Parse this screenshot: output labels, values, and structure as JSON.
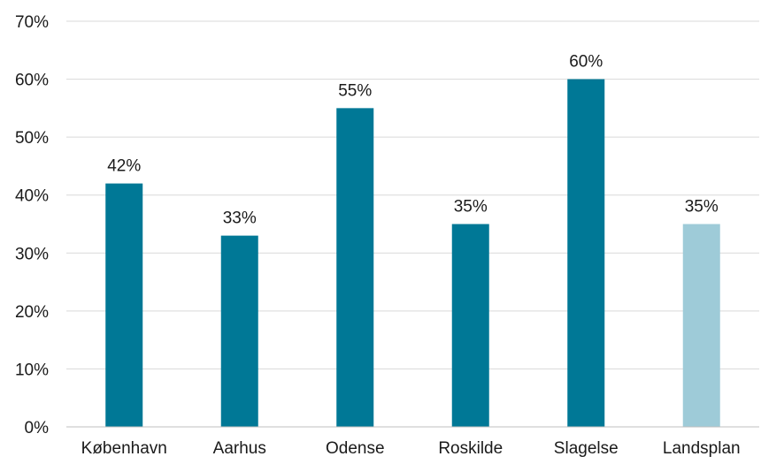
{
  "chart_data": {
    "type": "bar",
    "categories": [
      "København",
      "Aarhus",
      "Odense",
      "Roskilde",
      "Slagelse",
      "Landsplan"
    ],
    "values": [
      42,
      33,
      55,
      35,
      60,
      35
    ],
    "data_labels": [
      "42%",
      "33%",
      "55%",
      "35%",
      "60%",
      "35%"
    ],
    "bar_colors": [
      "#007896",
      "#007896",
      "#007896",
      "#007896",
      "#007896",
      "#9ecbd8"
    ],
    "ylim": [
      0,
      70
    ],
    "yticks": [
      0,
      10,
      20,
      30,
      40,
      50,
      60,
      70
    ],
    "ytick_labels": [
      "0%",
      "10%",
      "20%",
      "30%",
      "40%",
      "50%",
      "60%",
      "70%"
    ],
    "grid": true,
    "title": "",
    "xlabel": "",
    "ylabel": ""
  }
}
